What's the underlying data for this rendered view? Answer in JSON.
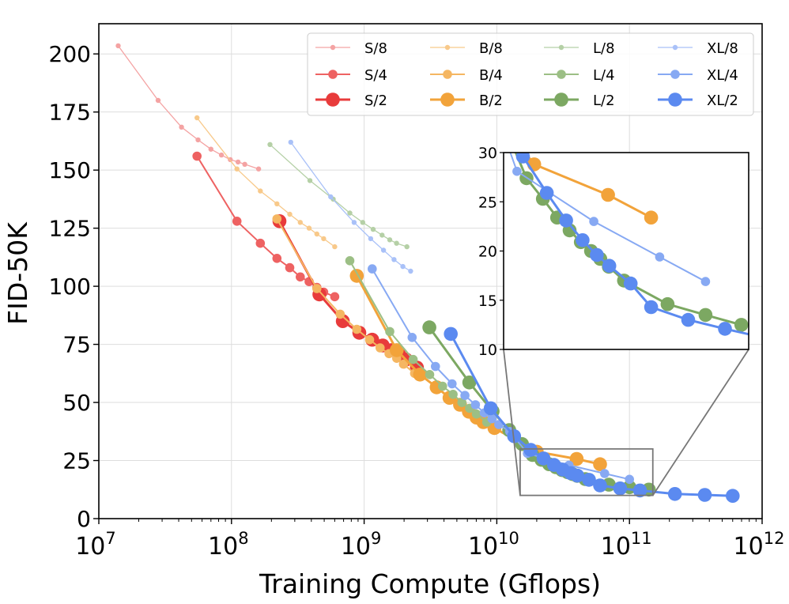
{
  "chart_data": {
    "type": "line",
    "xlabel": "Training Compute (Gflops)",
    "ylabel": "FID-50K",
    "x_scale": "log",
    "xlim": [
      10000000,
      1000000000000
    ],
    "ylim": [
      0,
      213
    ],
    "x_ticks": [
      {
        "base": "10",
        "exp": "7"
      },
      {
        "base": "10",
        "exp": "8"
      },
      {
        "base": "10",
        "exp": "9"
      },
      {
        "base": "10",
        "exp": "10"
      },
      {
        "base": "10",
        "exp": "11"
      },
      {
        "base": "10",
        "exp": "12"
      }
    ],
    "y_ticks": [
      "0",
      "25",
      "50",
      "75",
      "100",
      "125",
      "150",
      "175",
      "200"
    ],
    "grid": true,
    "legend_position": "top-right",
    "series": [
      {
        "name": "S/8",
        "color": "#f4a3a3",
        "size": "small",
        "points": [
          [
            14000000,
            203.5
          ],
          [
            28000000,
            180
          ],
          [
            42000000,
            168.5
          ],
          [
            56000000,
            163
          ],
          [
            70000000,
            159
          ],
          [
            84000000,
            156.5
          ],
          [
            98000000,
            154.5
          ],
          [
            112000000,
            153.5
          ],
          [
            126000000,
            152.5
          ],
          [
            160000000,
            150.5
          ]
        ]
      },
      {
        "name": "S/4",
        "color": "#ee6262",
        "size": "medium",
        "points": [
          [
            55000000,
            156
          ],
          [
            110000000,
            128
          ],
          [
            165000000,
            118.5
          ],
          [
            220000000,
            112
          ],
          [
            275000000,
            108
          ],
          [
            330000000,
            104
          ],
          [
            385000000,
            102
          ],
          [
            440000000,
            99.5
          ],
          [
            495000000,
            97.5
          ],
          [
            600000000,
            95.5
          ]
        ]
      },
      {
        "name": "S/2",
        "color": "#e83b3b",
        "size": "large",
        "points": [
          [
            230000000,
            128
          ],
          [
            460000000,
            96.5
          ],
          [
            690000000,
            85
          ],
          [
            920000000,
            80
          ],
          [
            1150000000,
            77
          ],
          [
            1380000000,
            74.5
          ],
          [
            1610000000,
            72.5
          ],
          [
            1840000000,
            70.5
          ],
          [
            2070000000,
            68.5
          ],
          [
            2500000000,
            65
          ]
        ]
      },
      {
        "name": "B/8",
        "color": "#f8c98a",
        "size": "small",
        "points": [
          [
            55000000,
            172.5
          ],
          [
            110000000,
            150.5
          ],
          [
            165000000,
            141
          ],
          [
            220000000,
            135.5
          ],
          [
            275000000,
            131
          ],
          [
            330000000,
            127.5
          ],
          [
            385000000,
            125
          ],
          [
            440000000,
            122.5
          ],
          [
            495000000,
            120.5
          ],
          [
            600000000,
            117
          ]
        ]
      },
      {
        "name": "B/4",
        "color": "#f5b661",
        "size": "medium",
        "points": [
          [
            220000000,
            129
          ],
          [
            440000000,
            99
          ],
          [
            660000000,
            88
          ],
          [
            880000000,
            81.5
          ],
          [
            1100000000,
            77
          ],
          [
            1320000000,
            73.5
          ],
          [
            1540000000,
            71
          ],
          [
            1760000000,
            69
          ],
          [
            1980000000,
            66.5
          ],
          [
            2400000000,
            62.5
          ]
        ]
      },
      {
        "name": "B/2",
        "color": "#f2a33a",
        "size": "large",
        "points": [
          [
            880000000,
            104.5
          ],
          [
            1760000000,
            72.5
          ],
          [
            2640000000,
            62
          ],
          [
            3520000000,
            56.5
          ],
          [
            4400000000,
            52
          ],
          [
            5280000000,
            49
          ],
          [
            6160000000,
            46
          ],
          [
            7040000000,
            43.5
          ],
          [
            7920000000,
            41.5
          ],
          [
            9600000000,
            39
          ],
          [
            20000000000,
            28.8
          ],
          [
            40000000000,
            25.7
          ],
          [
            60000000000,
            23.4
          ]
        ]
      },
      {
        "name": "L/8",
        "color": "#b5d0a6",
        "size": "small",
        "points": [
          [
            195000000,
            161
          ],
          [
            390000000,
            145.5
          ],
          [
            585000000,
            137.5
          ],
          [
            780000000,
            131.5
          ],
          [
            975000000,
            127.5
          ],
          [
            1170000000,
            124.5
          ],
          [
            1365000000,
            122
          ],
          [
            1560000000,
            120
          ],
          [
            1755000000,
            118.5
          ],
          [
            2100000000,
            117
          ]
        ]
      },
      {
        "name": "L/4",
        "color": "#9cbf85",
        "size": "medium",
        "points": [
          [
            780000000,
            111
          ],
          [
            1560000000,
            80.5
          ],
          [
            2340000000,
            68.5
          ],
          [
            3120000000,
            62
          ],
          [
            3900000000,
            57
          ],
          [
            4680000000,
            53.5
          ],
          [
            5460000000,
            50
          ],
          [
            6240000000,
            47.5
          ],
          [
            7020000000,
            45
          ],
          [
            8400000000,
            41.5
          ]
        ]
      },
      {
        "name": "L/2",
        "color": "#7ca862",
        "size": "large",
        "points": [
          [
            3100000000,
            82.3
          ],
          [
            6200000000,
            58.6
          ],
          [
            9300000000,
            46.2
          ],
          [
            12400000000,
            38.1
          ],
          [
            15500000000,
            32.1
          ],
          [
            18600000000,
            27.4
          ],
          [
            21700000000,
            25.3
          ],
          [
            24800000000,
            23.4
          ],
          [
            27900000000,
            22.1
          ],
          [
            31000000000,
            20.9
          ],
          [
            34100000000,
            20.0
          ],
          [
            37200000000,
            19.2
          ],
          [
            40300000000,
            18.4
          ],
          [
            46500000000,
            17.0
          ],
          [
            70000000000,
            14.6
          ],
          [
            100000000000,
            13.5
          ],
          [
            140000000000,
            12.5
          ]
        ]
      },
      {
        "name": "XL/8",
        "color": "#a9c1f8",
        "size": "small",
        "points": [
          [
            280000000,
            162
          ],
          [
            560000000,
            138.5
          ],
          [
            840000000,
            127.5
          ],
          [
            1120000000,
            120.5
          ],
          [
            1400000000,
            115.5
          ],
          [
            1680000000,
            111.5
          ],
          [
            1960000000,
            108.5
          ],
          [
            2240000000,
            106.5
          ]
        ]
      },
      {
        "name": "XL/4",
        "color": "#87a9f3",
        "size": "medium",
        "points": [
          [
            1150000000,
            107.5
          ],
          [
            2300000000,
            78
          ],
          [
            3450000000,
            65.5
          ],
          [
            4600000000,
            58
          ],
          [
            5750000000,
            53
          ],
          [
            6900000000,
            49
          ],
          [
            8050000000,
            45.5
          ],
          [
            9200000000,
            43
          ],
          [
            10350000000,
            40.5
          ],
          [
            12500000000,
            37.5
          ],
          [
            17000000000,
            28.1
          ],
          [
            35000000000,
            23.0
          ],
          [
            65000000000,
            19.4
          ],
          [
            100000000000,
            16.9
          ]
        ]
      },
      {
        "name": "XL/2",
        "color": "#5b8af0",
        "size": "large",
        "points": [
          [
            4500000000,
            79.5
          ],
          [
            9000000000,
            47.5
          ],
          [
            13500000000,
            35.5
          ],
          [
            18000000000,
            29.6
          ],
          [
            22500000000,
            25.9
          ],
          [
            27000000000,
            23.1
          ],
          [
            31500000000,
            21.1
          ],
          [
            36000000000,
            19.6
          ],
          [
            40500000000,
            18.5
          ],
          [
            49500000000,
            16.7
          ],
          [
            60000000000,
            14.3
          ],
          [
            85000000000,
            13.0
          ],
          [
            120000000000,
            12.1
          ],
          [
            220000000000,
            10.6
          ],
          [
            370000000000,
            10.2
          ],
          [
            600000000000,
            9.8
          ]
        ]
      }
    ],
    "inset": {
      "xlim": [
        15000000000,
        150000000000
      ],
      "ylim": [
        10,
        30
      ],
      "y_ticks": [
        "10",
        "15",
        "20",
        "25",
        "30"
      ]
    }
  }
}
